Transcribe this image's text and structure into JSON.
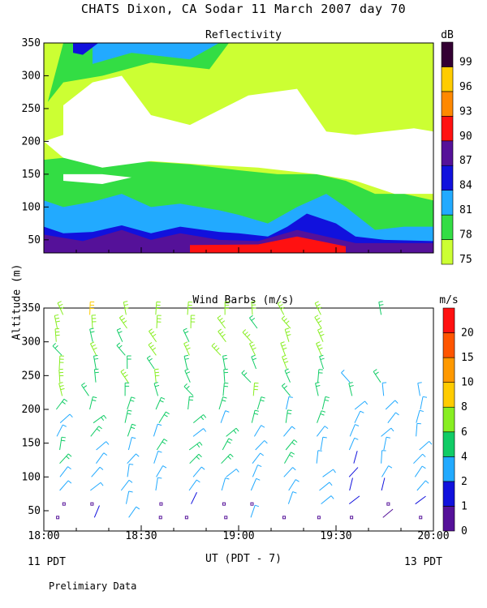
{
  "title": "CHATS Dixon, CA   Sodar  11 March 2007  day  70",
  "ylabel": "Altitude (m)",
  "xlabel": "UT  (PDT - 7)",
  "x_left_note": "11 PDT",
  "x_right_note": "13 PDT",
  "footer": "Prelimiary Data",
  "colors": {
    "refl_75": "#ccff33",
    "refl_78": "#33dd44",
    "refl_81": "#22aaff",
    "refl_84": "#1111dd",
    "refl_87": "#551199",
    "refl_90": "#ff1111",
    "refl_93": "#ff8800",
    "refl_96": "#ffcc00",
    "refl_99": "#330033",
    "wind_0": "#551199",
    "wind_1": "#1111dd",
    "wind_2": "#22aaff",
    "wind_4": "#11cc66",
    "wind_6": "#88ee22",
    "wind_8": "#ffcc00",
    "wind_10": "#ff9900",
    "wind_15": "#ff5500",
    "wind_20": "#ff1111"
  },
  "chart_data": [
    {
      "type": "heatmap",
      "title": "Reflectivity",
      "colorbar_title": "dB",
      "colorbar_ticks": [
        "75",
        "78",
        "81",
        "84",
        "87",
        "90",
        "93",
        "96",
        "99"
      ],
      "x": {
        "label": "UT (PDT - 7)",
        "range": [
          18.0,
          20.0
        ],
        "ticks": [
          "18:00",
          "18:30",
          "19:00",
          "19:30",
          "20:00"
        ]
      },
      "y": {
        "label": "Altitude (m)",
        "range": [
          30,
          350
        ],
        "ticks": [
          50,
          100,
          150,
          200,
          250,
          300,
          350
        ]
      },
      "bands": [
        {
          "level": 75,
          "top": [
            [
              18.0,
              350
            ],
            [
              20.0,
              350
            ]
          ]
        },
        {
          "level": 78,
          "top": [
            [
              18.0,
              172
            ],
            [
              18.2,
              178
            ],
            [
              18.3,
              160
            ],
            [
              18.5,
              170
            ],
            [
              18.75,
              165
            ],
            [
              19.0,
              156
            ],
            [
              19.2,
              150
            ],
            [
              19.4,
              150
            ],
            [
              19.55,
              140
            ],
            [
              19.7,
              120
            ],
            [
              19.85,
              120
            ],
            [
              20.0,
              110
            ]
          ]
        },
        {
          "level": 81,
          "top": [
            [
              18.0,
              110
            ],
            [
              18.1,
              100
            ],
            [
              18.25,
              108
            ],
            [
              18.4,
              120
            ],
            [
              18.55,
              100
            ],
            [
              18.7,
              105
            ],
            [
              18.9,
              95
            ],
            [
              19.0,
              88
            ],
            [
              19.15,
              75
            ],
            [
              19.3,
              100
            ],
            [
              19.45,
              120
            ],
            [
              19.55,
              100
            ],
            [
              19.7,
              65
            ],
            [
              19.85,
              70
            ],
            [
              20.0,
              70
            ]
          ]
        },
        {
          "level": 84,
          "top": [
            [
              18.0,
              70
            ],
            [
              18.1,
              60
            ],
            [
              18.25,
              62
            ],
            [
              18.4,
              72
            ],
            [
              18.55,
              60
            ],
            [
              18.7,
              70
            ],
            [
              18.9,
              62
            ],
            [
              19.0,
              60
            ],
            [
              19.15,
              55
            ],
            [
              19.25,
              70
            ],
            [
              19.35,
              90
            ],
            [
              19.5,
              75
            ],
            [
              19.6,
              55
            ],
            [
              19.75,
              50
            ],
            [
              20.0,
              48
            ]
          ]
        },
        {
          "level": 87,
          "top": [
            [
              18.0,
              58
            ],
            [
              18.2,
              48
            ],
            [
              18.4,
              65
            ],
            [
              18.55,
              50
            ],
            [
              18.7,
              60
            ],
            [
              18.9,
              50
            ],
            [
              19.1,
              48
            ],
            [
              19.3,
              65
            ],
            [
              19.45,
              55
            ],
            [
              19.6,
              45
            ],
            [
              20.0,
              45
            ]
          ]
        },
        {
          "level": 90,
          "top": [
            [
              18.75,
              42
            ],
            [
              19.1,
              43
            ],
            [
              19.3,
              55
            ],
            [
              19.55,
              40
            ]
          ]
        }
      ],
      "gaps": [
        {
          "level": "none",
          "region": [
            [
              18.1,
              255
            ],
            [
              18.25,
              290
            ],
            [
              18.4,
              300
            ],
            [
              18.55,
              240
            ],
            [
              18.75,
              225
            ],
            [
              19.05,
              270
            ],
            [
              19.3,
              280
            ],
            [
              19.45,
              215
            ],
            [
              19.6,
              210
            ],
            [
              19.75,
              215
            ],
            [
              19.9,
              220
            ],
            [
              20.0,
              215
            ],
            [
              20.0,
              120
            ],
            [
              19.8,
              120
            ],
            [
              19.6,
              140
            ],
            [
              19.4,
              150
            ],
            [
              19.1,
              160
            ],
            [
              18.8,
              165
            ],
            [
              18.55,
              170
            ],
            [
              18.3,
              160
            ],
            [
              18.1,
              175
            ],
            [
              18.0,
              200
            ],
            [
              18.1,
              210
            ]
          ]
        },
        {
          "level": "none",
          "region": [
            [
              18.1,
              140
            ],
            [
              18.3,
              135
            ],
            [
              18.45,
              145
            ],
            [
              18.3,
              150
            ],
            [
              18.1,
              150
            ]
          ]
        }
      ]
    },
    {
      "type": "scatter",
      "title": "Wind Barbs (m/s)",
      "colorbar_title": "m/s",
      "colorbar_ticks": [
        "0",
        "1",
        "2",
        "4",
        "6",
        "8",
        "10",
        "15",
        "20"
      ],
      "x": {
        "label": "UT (PDT - 7)",
        "range": [
          18.0,
          20.0
        ],
        "ticks": [
          "18:00",
          "18:30",
          "19:00",
          "19:30",
          "20:00"
        ]
      },
      "y": {
        "label": "Altitude (m)",
        "range": [
          20,
          350
        ],
        "ticks": [
          50,
          100,
          150,
          200,
          250,
          300,
          350
        ]
      },
      "columns": [
        18.083,
        18.25,
        18.417,
        18.583,
        18.75,
        18.917,
        19.083,
        19.25,
        19.417,
        19.583,
        19.75,
        19.917
      ],
      "altitudes": [
        40,
        60,
        80,
        100,
        120,
        140,
        160,
        180,
        200,
        220,
        240,
        260,
        280,
        300,
        320,
        340
      ],
      "speed_levels": [
        0,
        1,
        2,
        4,
        6,
        8,
        10,
        15,
        20
      ]
    }
  ]
}
